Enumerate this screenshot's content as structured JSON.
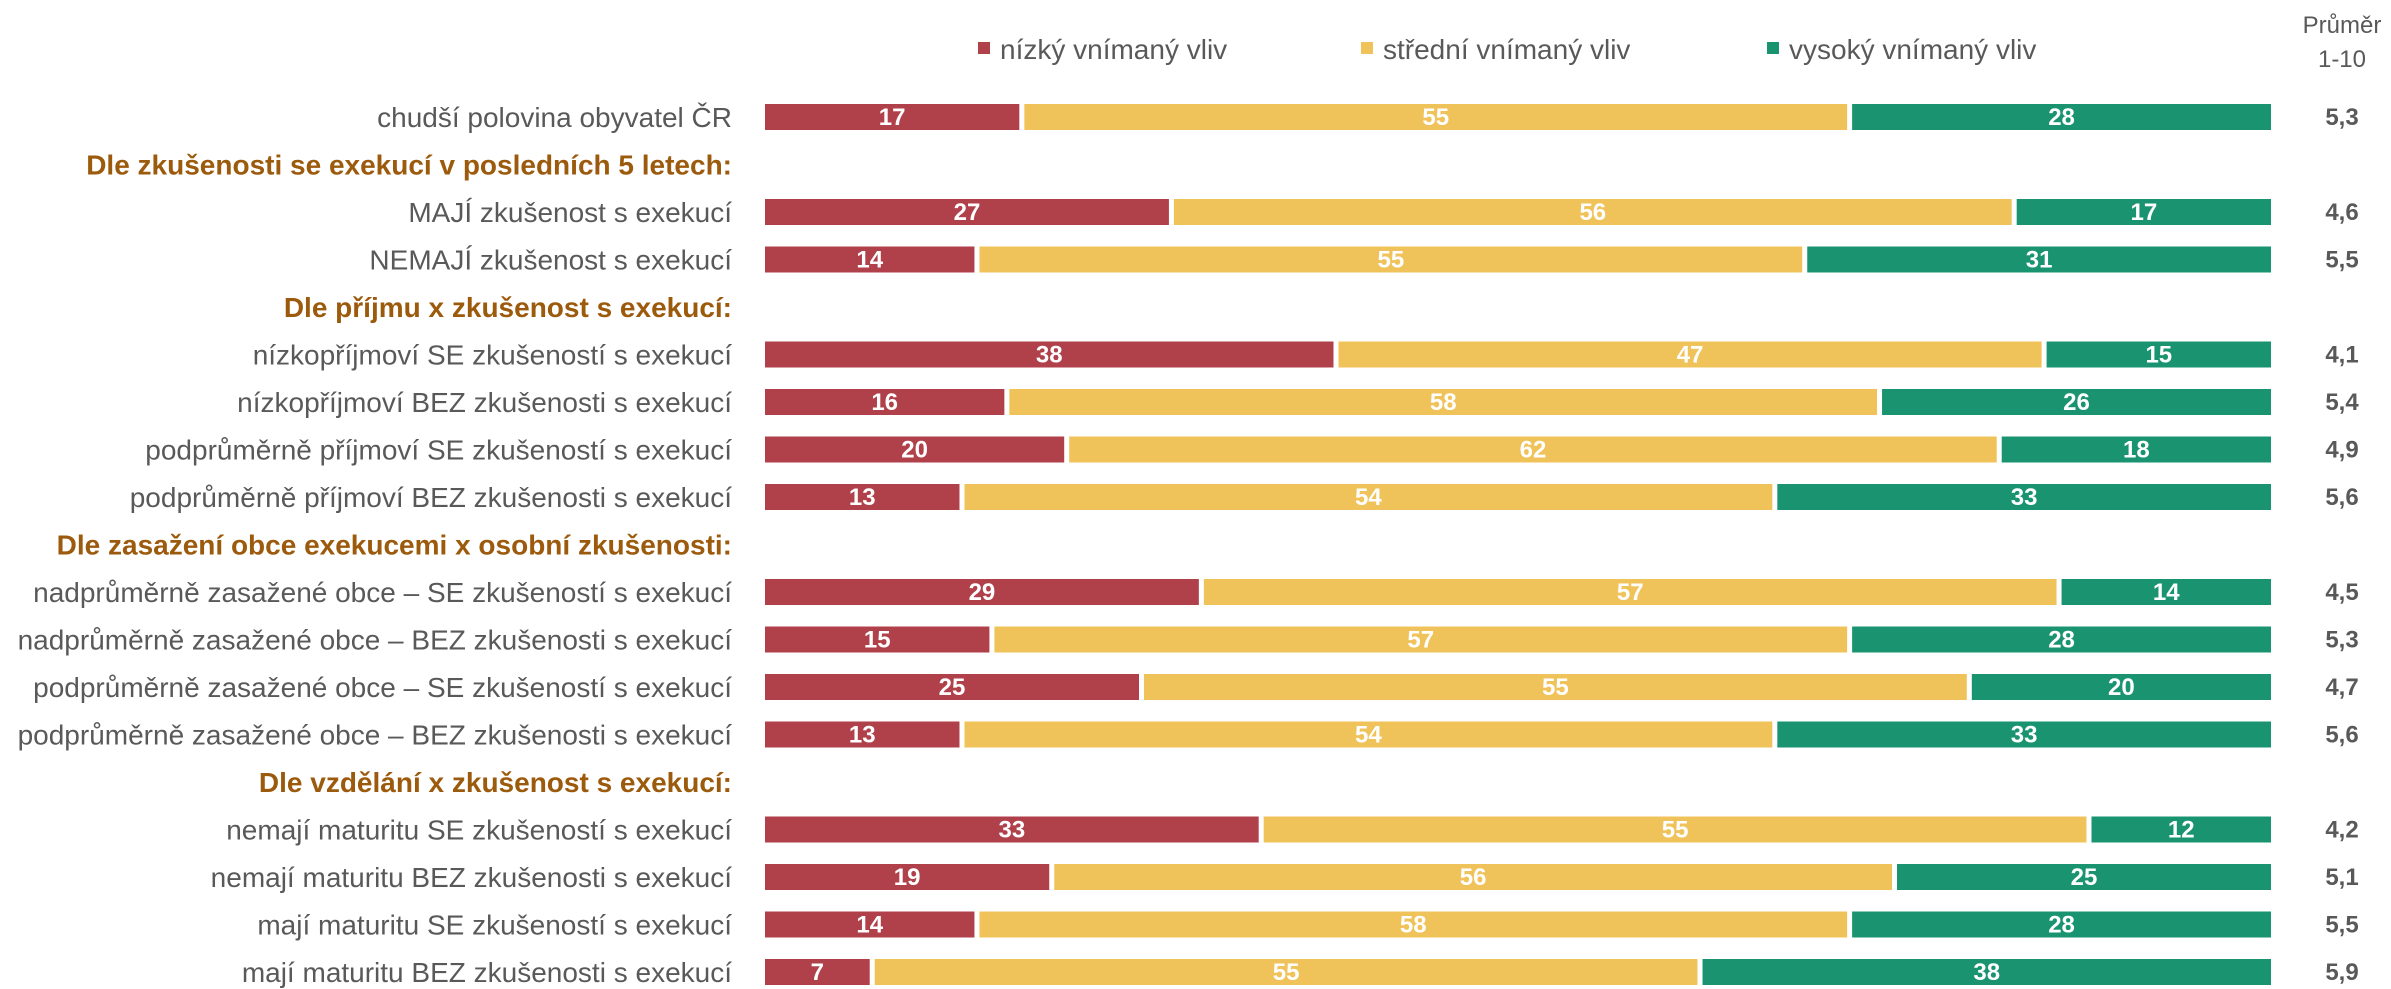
{
  "chart_data": {
    "type": "bar",
    "orientation": "horizontal",
    "stacked": true,
    "percent_stacked": true,
    "legend_placement": "top",
    "grid": false,
    "legend": [
      {
        "key": "nizky",
        "label": "nízký vnímaný vliv",
        "color": "#b0404a"
      },
      {
        "key": "stredni",
        "label": "střední vnímaný vliv",
        "color": "#f0c35a"
      },
      {
        "key": "vysoky",
        "label": "vysoký vnímaný vliv",
        "color": "#1a9470"
      }
    ],
    "mean_header": [
      "Průměr",
      "1-10"
    ],
    "rows": [
      {
        "type": "data",
        "label": "chudší polovina obyvatel ČR",
        "values": [
          17,
          55,
          28
        ],
        "mean": "5,3"
      },
      {
        "type": "section",
        "label": "Dle zkušenosti se exekucí v posledních 5 letech:"
      },
      {
        "type": "data",
        "label": "MAJÍ zkušenost s exekucí",
        "values": [
          27,
          56,
          17
        ],
        "mean": "4,6"
      },
      {
        "type": "data",
        "label": "NEMAJÍ zkušenost s exekucí",
        "values": [
          14,
          55,
          31
        ],
        "mean": "5,5"
      },
      {
        "type": "section",
        "label": "Dle příjmu x zkušenost s exekucí:"
      },
      {
        "type": "data",
        "label": "nízkopříjmoví SE zkušeností s exekucí",
        "values": [
          38,
          47,
          15
        ],
        "mean": "4,1"
      },
      {
        "type": "data",
        "label": "nízkopříjmoví BEZ zkušenosti s exekucí",
        "values": [
          16,
          58,
          26
        ],
        "mean": "5,4"
      },
      {
        "type": "data",
        "label": "podprůměrně příjmoví SE zkušeností s exekucí",
        "values": [
          20,
          62,
          18
        ],
        "mean": "4,9"
      },
      {
        "type": "data",
        "label": "podprůměrně příjmoví BEZ zkušenosti s exekucí",
        "values": [
          13,
          54,
          33
        ],
        "mean": "5,6"
      },
      {
        "type": "section",
        "label": "Dle zasažení obce exekucemi x osobní zkušenosti:"
      },
      {
        "type": "data",
        "label": "nadprůměrně zasažené obce – SE zkušeností s exekucí",
        "values": [
          29,
          57,
          14
        ],
        "mean": "4,5"
      },
      {
        "type": "data",
        "label": "nadprůměrně zasažené obce – BEZ zkušenosti s exekucí",
        "values": [
          15,
          57,
          28
        ],
        "mean": "5,3"
      },
      {
        "type": "data",
        "label": "podprůměrně zasažené obce – SE zkušeností s exekucí",
        "values": [
          25,
          55,
          20
        ],
        "mean": "4,7"
      },
      {
        "type": "data",
        "label": "podprůměrně zasažené obce – BEZ zkušenosti s exekucí",
        "values": [
          13,
          54,
          33
        ],
        "mean": "5,6"
      },
      {
        "type": "section",
        "label": "Dle vzdělání x zkušenost s exekucí:"
      },
      {
        "type": "data",
        "label": "nemají maturitu SE zkušeností s exekucí",
        "values": [
          33,
          55,
          12
        ],
        "mean": "4,2"
      },
      {
        "type": "data",
        "label": "nemají maturitu BEZ zkušenosti s exekucí",
        "values": [
          19,
          56,
          25
        ],
        "mean": "5,1"
      },
      {
        "type": "data",
        "label": "mají maturitu SE zkušeností s exekucí",
        "values": [
          14,
          58,
          28
        ],
        "mean": "5,5"
      },
      {
        "type": "data",
        "label": "mají maturitu BEZ zkušenosti s exekucí",
        "values": [
          7,
          55,
          38
        ],
        "mean": "5,9"
      }
    ]
  }
}
